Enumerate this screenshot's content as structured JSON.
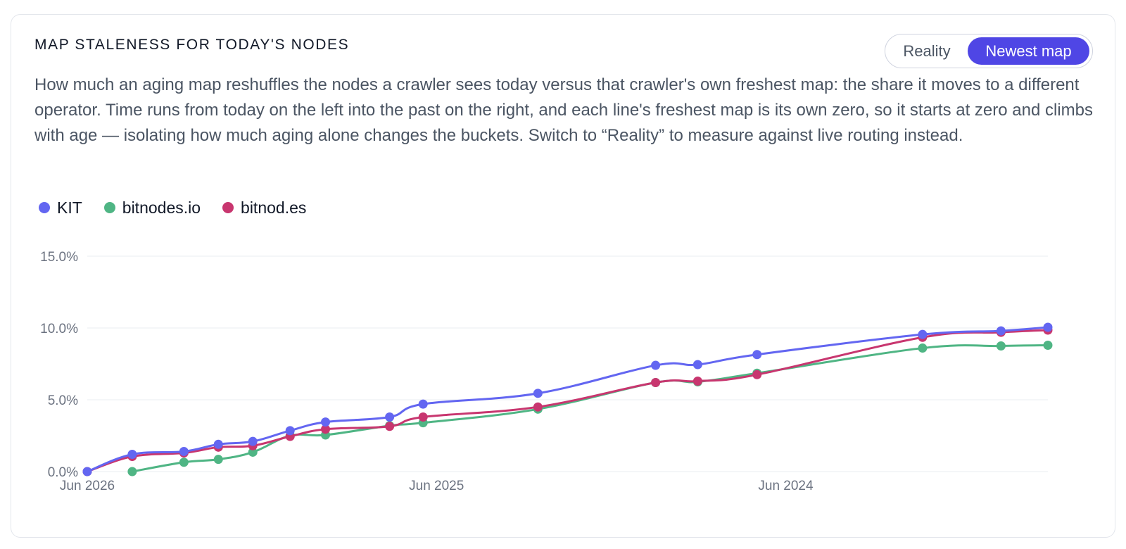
{
  "header": {
    "title": "MAP STALENESS FOR TODAY'S NODES",
    "description": "How much an aging map reshuffles the nodes a crawler sees today versus that crawler's own freshest map: the share it moves to a different operator. Time runs from today on the left into the past on the right, and each line's freshest map is its own zero, so it starts at zero and climbs with age — isolating how much aging alone changes the buckets. Switch to “Reality” to measure against live routing instead."
  },
  "toggle": {
    "options": [
      "Reality",
      "Newest map"
    ],
    "selected": "Newest map"
  },
  "colors": {
    "accent": "#4f46e5",
    "grid": "#eef0f3"
  },
  "chart_data": {
    "type": "line",
    "x_axis": {
      "type": "time",
      "reversed": true,
      "range": [
        "2026-06-01",
        "2023-09-01"
      ],
      "ticks": [
        {
          "value": "2026-06-01",
          "label": "Jun 2026"
        },
        {
          "value": "2025-06-01",
          "label": "Jun 2025"
        },
        {
          "value": "2024-06-01",
          "label": "Jun 2024"
        }
      ]
    },
    "y_axis": {
      "range": [
        0,
        15
      ],
      "ticks": [
        {
          "value": 0,
          "label": "0.0%"
        },
        {
          "value": 5,
          "label": "5.0%"
        },
        {
          "value": 10,
          "label": "10.0%"
        },
        {
          "value": 15,
          "label": "15.0%"
        }
      ],
      "grid": true
    },
    "legend": {
      "placement": "top-left"
    },
    "series": [
      {
        "name": "KIT",
        "color": "#6366f1",
        "points": [
          {
            "x": "2026-06-01",
            "y": 0.0
          },
          {
            "x": "2026-04-15",
            "y": 1.2
          },
          {
            "x": "2026-02-20",
            "y": 1.4
          },
          {
            "x": "2026-01-15",
            "y": 1.9
          },
          {
            "x": "2025-12-10",
            "y": 2.1
          },
          {
            "x": "2025-11-01",
            "y": 2.85
          },
          {
            "x": "2025-09-25",
            "y": 3.45
          },
          {
            "x": "2025-07-20",
            "y": 3.8
          },
          {
            "x": "2025-06-15",
            "y": 4.7
          },
          {
            "x": "2025-02-15",
            "y": 5.45
          },
          {
            "x": "2024-10-15",
            "y": 7.4
          },
          {
            "x": "2024-09-01",
            "y": 7.45
          },
          {
            "x": "2024-07-01",
            "y": 8.15
          },
          {
            "x": "2024-01-10",
            "y": 9.55
          },
          {
            "x": "2023-10-20",
            "y": 9.8
          },
          {
            "x": "2023-09-01",
            "y": 10.05
          }
        ]
      },
      {
        "name": "bitnodes.io",
        "color": "#4fb584",
        "points": [
          {
            "x": "2026-04-15",
            "y": 0.0
          },
          {
            "x": "2026-02-20",
            "y": 0.65
          },
          {
            "x": "2026-01-15",
            "y": 0.85
          },
          {
            "x": "2025-12-10",
            "y": 1.35
          },
          {
            "x": "2025-11-01",
            "y": 2.5
          },
          {
            "x": "2025-09-25",
            "y": 2.55
          },
          {
            "x": "2025-07-20",
            "y": 3.2
          },
          {
            "x": "2025-06-15",
            "y": 3.4
          },
          {
            "x": "2025-02-15",
            "y": 4.35
          },
          {
            "x": "2024-10-15",
            "y": 6.2
          },
          {
            "x": "2024-09-01",
            "y": 6.25
          },
          {
            "x": "2024-07-01",
            "y": 6.85
          },
          {
            "x": "2024-01-10",
            "y": 8.6
          },
          {
            "x": "2023-10-20",
            "y": 8.75
          },
          {
            "x": "2023-09-01",
            "y": 8.8
          }
        ]
      },
      {
        "name": "bitnod.es",
        "color": "#c8366f",
        "points": [
          {
            "x": "2026-06-01",
            "y": 0.0
          },
          {
            "x": "2026-04-15",
            "y": 1.05
          },
          {
            "x": "2026-02-20",
            "y": 1.3
          },
          {
            "x": "2026-01-15",
            "y": 1.7
          },
          {
            "x": "2025-12-10",
            "y": 1.8
          },
          {
            "x": "2025-11-01",
            "y": 2.45
          },
          {
            "x": "2025-09-25",
            "y": 2.95
          },
          {
            "x": "2025-07-20",
            "y": 3.15
          },
          {
            "x": "2025-06-15",
            "y": 3.8
          },
          {
            "x": "2025-02-15",
            "y": 4.5
          },
          {
            "x": "2024-10-15",
            "y": 6.2
          },
          {
            "x": "2024-09-01",
            "y": 6.3
          },
          {
            "x": "2024-07-01",
            "y": 6.75
          },
          {
            "x": "2024-01-10",
            "y": 9.35
          },
          {
            "x": "2023-10-20",
            "y": 9.7
          },
          {
            "x": "2023-09-01",
            "y": 9.85
          }
        ]
      }
    ]
  }
}
